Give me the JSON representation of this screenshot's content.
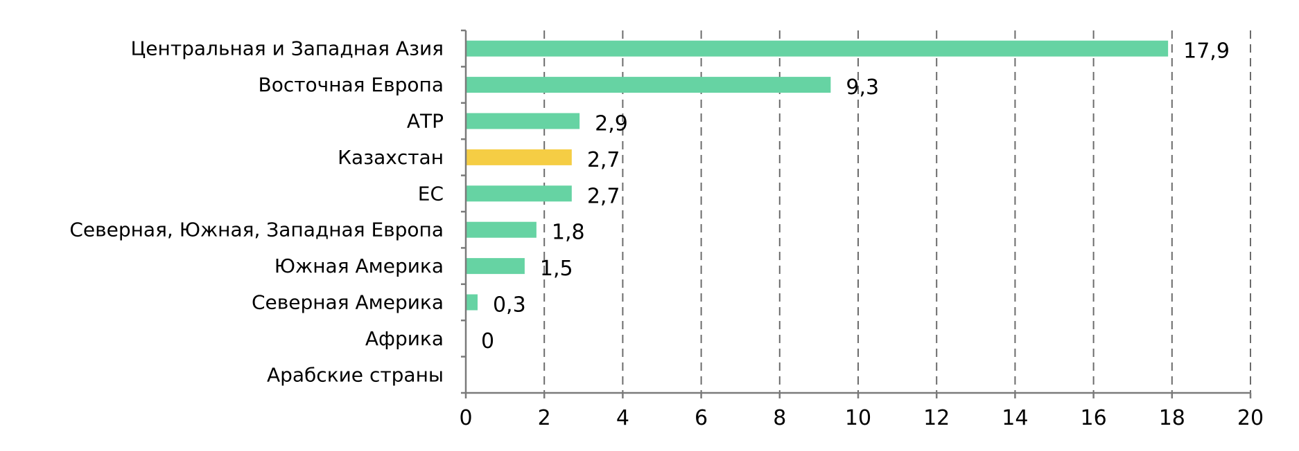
{
  "chart_data": {
    "type": "bar",
    "orientation": "horizontal",
    "categories": [
      "Центральная и Западная Азия",
      "Восточная Европа",
      "АТР",
      "Казахстан",
      "ЕС",
      "Северная, Южная, Западная Европа",
      "Южная Америка",
      "Северная Америка",
      "Африка",
      "Арабские страны"
    ],
    "values": [
      17.9,
      9.3,
      2.9,
      2.7,
      2.7,
      1.8,
      1.5,
      0.3,
      0,
      null
    ],
    "value_labels": [
      "17,9",
      "9,3",
      "2,9",
      "2,7",
      "2,7",
      "1,8",
      "1,5",
      "0,3",
      "0",
      ""
    ],
    "highlight_index": 3,
    "colors": {
      "bar": "#66d3a3",
      "highlight": "#f5cd44",
      "grid": "#6b6b6b",
      "axis": "#7a7a7a"
    },
    "xlim": [
      0,
      20
    ],
    "xticks": [
      0,
      2,
      4,
      6,
      8,
      10,
      12,
      14,
      16,
      18,
      20
    ],
    "xtick_labels": [
      "0",
      "2",
      "4",
      "6",
      "8",
      "10",
      "12",
      "14",
      "16",
      "18",
      "20"
    ],
    "grid": true,
    "legend": "none",
    "title": "",
    "xlabel": "",
    "ylabel": ""
  }
}
